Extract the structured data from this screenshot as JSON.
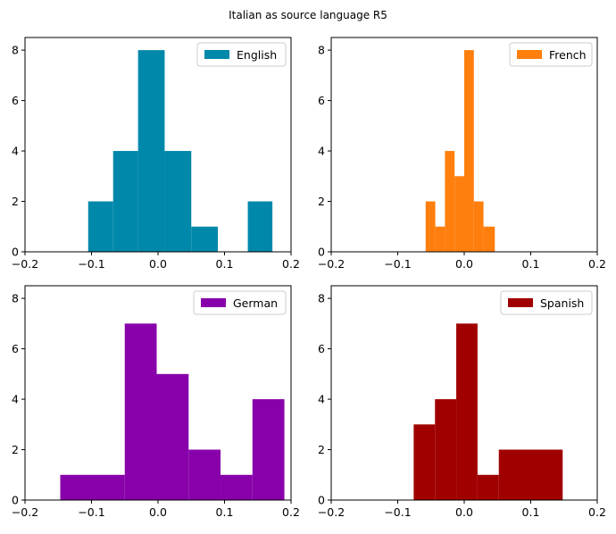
{
  "figure": {
    "title": "Italian as source language R5"
  },
  "chart_data": [
    {
      "type": "histogram",
      "series": [
        {
          "name": "English",
          "color": "#0088aa"
        }
      ],
      "bin_edges": [
        -0.105,
        -0.0675,
        -0.03,
        0.0075,
        0.045,
        0.0825,
        0.12,
        0.1575,
        0.175
      ],
      "bins": [
        {
          "x0": -0.105,
          "x1": -0.0675,
          "count": 2
        },
        {
          "x0": -0.0675,
          "x1": -0.03,
          "count": 4
        },
        {
          "x0": -0.03,
          "x1": 0.01,
          "count": 8
        },
        {
          "x0": 0.01,
          "x1": 0.05,
          "count": 4
        },
        {
          "x0": 0.05,
          "x1": 0.09,
          "count": 1
        },
        {
          "x0": 0.09,
          "x1": 0.135,
          "count": 0
        },
        {
          "x0": 0.135,
          "x1": 0.172,
          "count": 2
        }
      ],
      "xlim": [
        -0.2,
        0.2
      ],
      "ylim": [
        0,
        8.5
      ],
      "xticks": [
        -0.2,
        -0.1,
        0.0,
        0.1,
        0.2
      ],
      "xtick_labels": [
        "−0.2",
        "−0.1",
        "0.0",
        "0.1",
        "0.2"
      ],
      "yticks": [
        0,
        2,
        4,
        6,
        8
      ],
      "ytick_labels": [
        "0",
        "2",
        "4",
        "6",
        "8"
      ],
      "legend": "top-right",
      "grid": false
    },
    {
      "type": "histogram",
      "series": [
        {
          "name": "French",
          "color": "#ff7f0e"
        }
      ],
      "bins": [
        {
          "x0": -0.058,
          "x1": -0.0435,
          "count": 2
        },
        {
          "x0": -0.0435,
          "x1": -0.029,
          "count": 1
        },
        {
          "x0": -0.029,
          "x1": -0.0145,
          "count": 4
        },
        {
          "x0": -0.0145,
          "x1": 0.0,
          "count": 3
        },
        {
          "x0": 0.0,
          "x1": 0.0145,
          "count": 8
        },
        {
          "x0": 0.0145,
          "x1": 0.029,
          "count": 2
        },
        {
          "x0": 0.029,
          "x1": 0.046,
          "count": 1
        }
      ],
      "xlim": [
        -0.2,
        0.2
      ],
      "ylim": [
        0,
        8.5
      ],
      "xticks": [
        -0.2,
        -0.1,
        0.0,
        0.1,
        0.2
      ],
      "xtick_labels": [
        "−0.2",
        "−0.1",
        "0.0",
        "0.1",
        "0.2"
      ],
      "yticks": [
        0,
        2,
        4,
        6,
        8
      ],
      "ytick_labels": [
        "0",
        "2",
        "4",
        "6",
        "8"
      ],
      "legend": "top-right",
      "grid": false
    },
    {
      "type": "histogram",
      "series": [
        {
          "name": "German",
          "color": "#8800aa"
        }
      ],
      "bins": [
        {
          "x0": -0.147,
          "x1": -0.05,
          "count": 1
        },
        {
          "x0": -0.05,
          "x1": -0.002,
          "count": 7
        },
        {
          "x0": -0.002,
          "x1": 0.046,
          "count": 5
        },
        {
          "x0": 0.046,
          "x1": 0.094,
          "count": 2
        },
        {
          "x0": 0.094,
          "x1": 0.142,
          "count": 1
        },
        {
          "x0": 0.142,
          "x1": 0.19,
          "count": 4
        }
      ],
      "xlim": [
        -0.2,
        0.2
      ],
      "ylim": [
        0,
        8.5
      ],
      "xticks": [
        -0.2,
        -0.1,
        0.0,
        0.1,
        0.2
      ],
      "xtick_labels": [
        "−0.2",
        "−0.1",
        "0.0",
        "0.1",
        "0.2"
      ],
      "yticks": [
        0,
        2,
        4,
        6,
        8
      ],
      "ytick_labels": [
        "0",
        "2",
        "4",
        "6",
        "8"
      ],
      "legend": "top-right",
      "grid": false
    },
    {
      "type": "histogram",
      "series": [
        {
          "name": "Spanish",
          "color": "#a00000"
        }
      ],
      "bins": [
        {
          "x0": -0.076,
          "x1": -0.044,
          "count": 3
        },
        {
          "x0": -0.044,
          "x1": -0.012,
          "count": 4
        },
        {
          "x0": -0.012,
          "x1": 0.02,
          "count": 7
        },
        {
          "x0": 0.02,
          "x1": 0.052,
          "count": 1
        },
        {
          "x0": 0.052,
          "x1": 0.148,
          "count": 2
        }
      ],
      "xlim": [
        -0.2,
        0.2
      ],
      "ylim": [
        0,
        8.5
      ],
      "xticks": [
        -0.2,
        -0.1,
        0.0,
        0.1,
        0.2
      ],
      "xtick_labels": [
        "−0.2",
        "−0.1",
        "0.0",
        "0.1",
        "0.2"
      ],
      "yticks": [
        0,
        2,
        4,
        6,
        8
      ],
      "ytick_labels": [
        "0",
        "2",
        "4",
        "6",
        "8"
      ],
      "legend": "top-right",
      "grid": false
    }
  ]
}
